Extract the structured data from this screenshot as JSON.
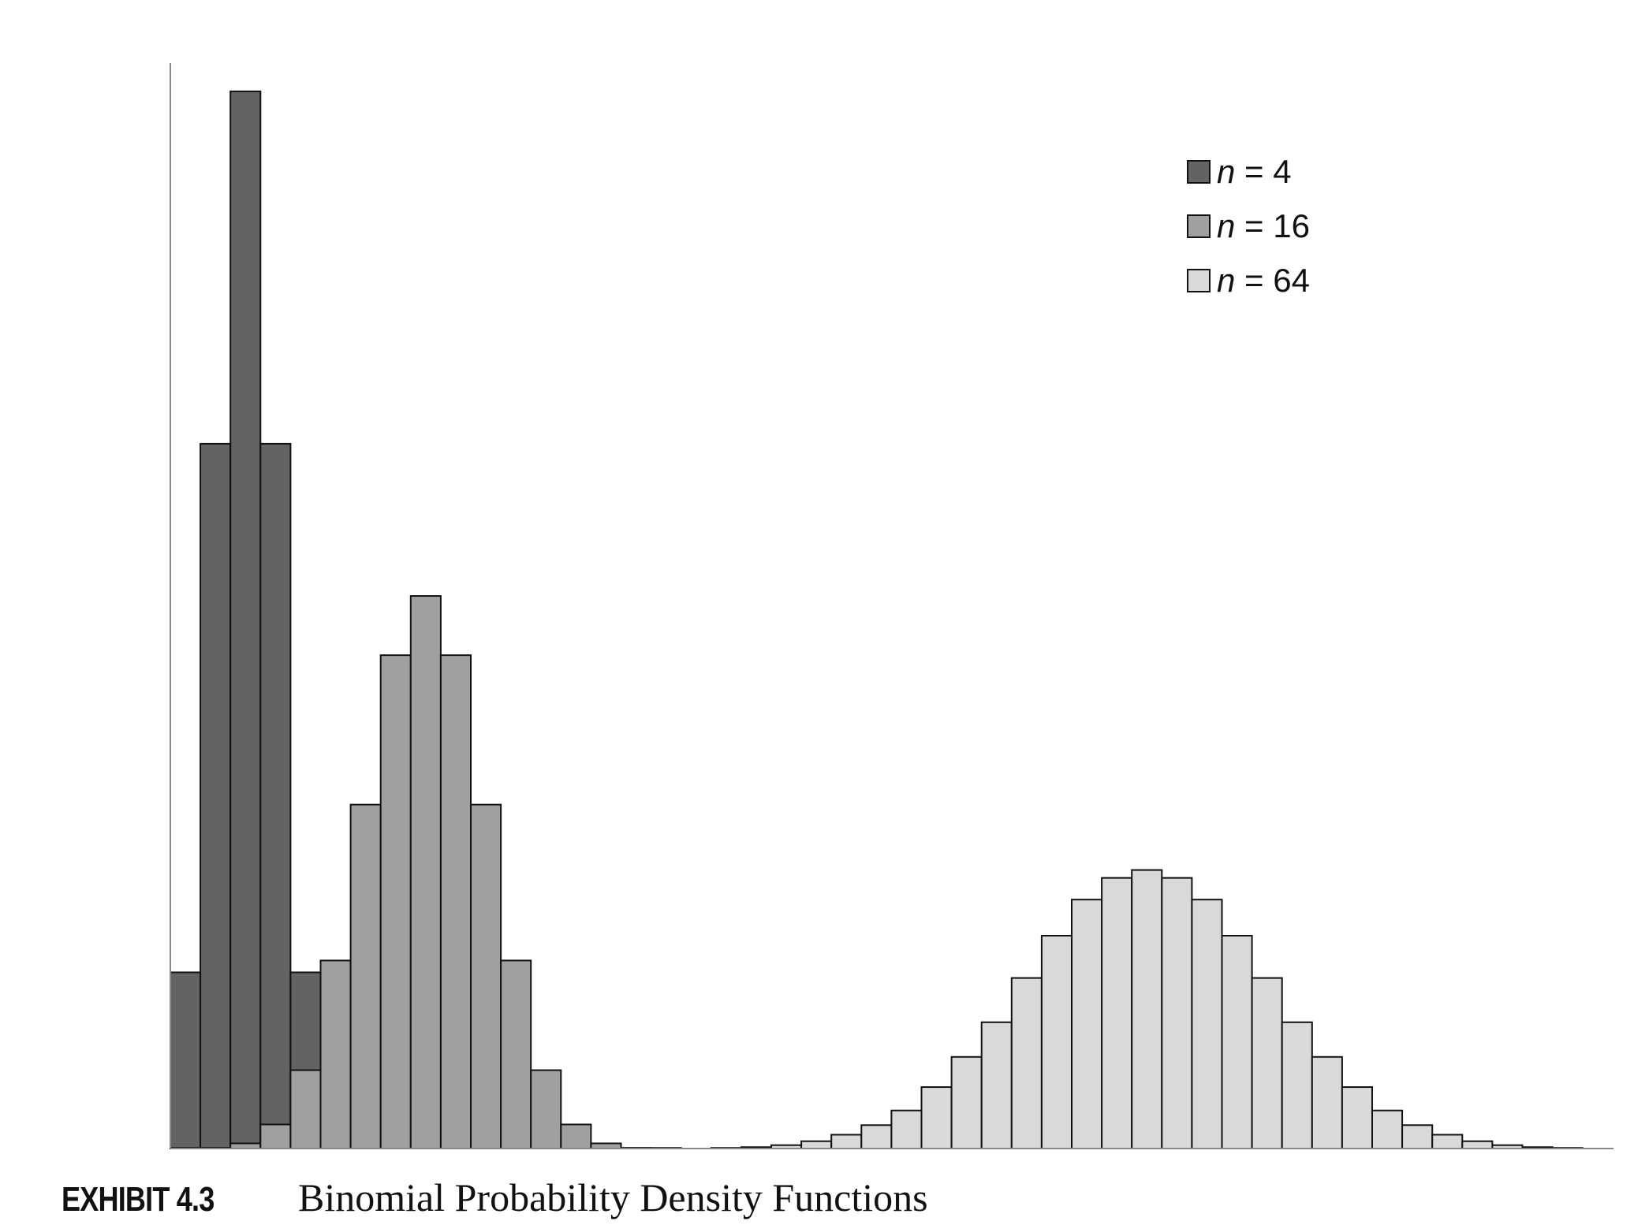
{
  "chart_data": {
    "type": "bar",
    "title": "",
    "xlabel": "",
    "ylabel": "",
    "grid": false,
    "legend_position": "top-right",
    "colors": {
      "n4": "#636363",
      "n16": "#a0a0a0",
      "n64": "#d9d9d9",
      "edge": "#111111",
      "axis": "#888888"
    },
    "series": [
      {
        "name": "n = 4",
        "legend_var": "n",
        "legend_value": "= 4",
        "color_key": "n4",
        "start": 0,
        "values": [
          0.0625,
          0.25,
          0.375,
          0.25,
          0.0625
        ]
      },
      {
        "name": "n = 16",
        "legend_var": "n",
        "legend_value": "= 16",
        "color_key": "n16",
        "start": 0,
        "values": [
          1.53e-05,
          0.000244,
          0.00183,
          0.00854,
          0.0278,
          0.0667,
          0.122,
          0.175,
          0.196,
          0.175,
          0.122,
          0.0667,
          0.0278,
          0.00854,
          0.00183,
          0.000244,
          1.53e-05
        ]
      },
      {
        "name": "n = 64",
        "legend_var": "n",
        "legend_value": "= 64",
        "color_key": "n64",
        "start": 18,
        "values": [
          0.0002,
          0.0005,
          0.0012,
          0.0026,
          0.0049,
          0.0083,
          0.0135,
          0.0218,
          0.0325,
          0.0448,
          0.0605,
          0.0755,
          0.0883,
          0.096,
          0.0988,
          0.096,
          0.0883,
          0.0755,
          0.0605,
          0.0448,
          0.0325,
          0.0218,
          0.0135,
          0.0083,
          0.0049,
          0.0026,
          0.0012,
          0.0005,
          0.0002
        ]
      }
    ],
    "xlim": [
      0,
      47
    ],
    "ylim": [
      0,
      0.38
    ]
  },
  "caption": {
    "exhibit": "EXHIBIT 4.3",
    "title": "Binomial Probability Density Functions"
  }
}
